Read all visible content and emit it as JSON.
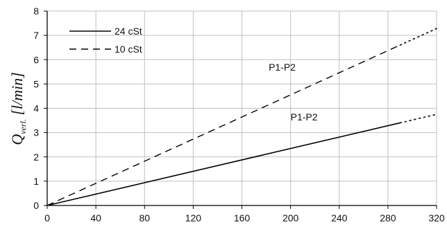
{
  "chart_data": {
    "type": "line",
    "xlim": [
      0,
      320
    ],
    "ylim": [
      0,
      8
    ],
    "x_ticks": [
      0,
      40,
      80,
      120,
      160,
      200,
      240,
      280,
      320
    ],
    "y_ticks": [
      0,
      1,
      2,
      3,
      4,
      5,
      6,
      7,
      8
    ],
    "grid": true,
    "legend_position": "top-left",
    "ylabel": {
      "main": "Q",
      "subscript": "verl.",
      "unit": " [l/min]"
    },
    "series": [
      {
        "name": "24 cSt",
        "style": "solid",
        "x": [
          0,
          290
        ],
        "y": [
          0,
          3.4
        ],
        "extrapolation": {
          "style": "dotted",
          "x": [
            290,
            320
          ],
          "y": [
            3.4,
            3.75
          ]
        }
      },
      {
        "name": "10 cSt",
        "style": "dashed",
        "x": [
          0,
          290
        ],
        "y": [
          0,
          6.6
        ],
        "extrapolation": {
          "style": "dotted",
          "x": [
            290,
            320
          ],
          "y": [
            6.6,
            7.28
          ]
        }
      }
    ],
    "annotations": [
      {
        "text": "P1-P2",
        "x": 182,
        "y": 5.55
      },
      {
        "text": "P1-P2",
        "x": 200,
        "y": 3.5
      }
    ],
    "colors": {
      "line": "#000000",
      "grid": "#bfbfbf",
      "axis": "#000000"
    }
  }
}
